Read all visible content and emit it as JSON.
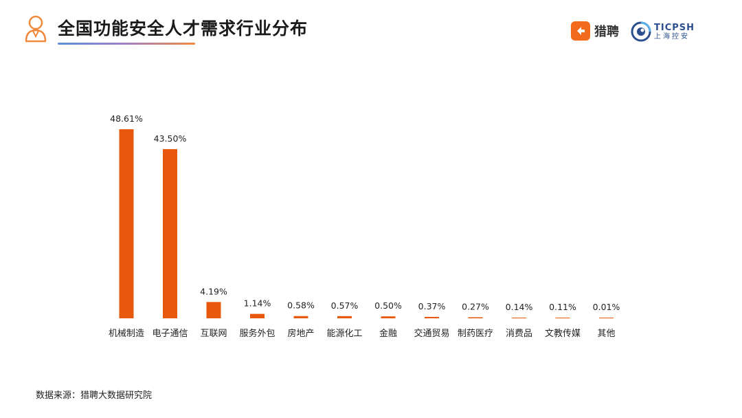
{
  "header": {
    "title": "全国功能安全人才需求行业分布",
    "icon": "person-icon"
  },
  "logos": {
    "liepin": {
      "text": "猎聘",
      "color": "#f26a1b"
    },
    "ticpsh": {
      "en": "TICPSH",
      "cn": "上海控安",
      "color": "#2b4f8f"
    }
  },
  "colors": {
    "bar": "#e8580c",
    "accent": "#f08a3c"
  },
  "chart_data": {
    "type": "bar",
    "categories": [
      "机械制造",
      "电子通信",
      "互联网",
      "服务外包",
      "房地产",
      "能源化工",
      "金融",
      "交通贸易",
      "制药医疗",
      "消费品",
      "文教传媒",
      "其他"
    ],
    "values": [
      48.61,
      43.5,
      4.19,
      1.14,
      0.58,
      0.57,
      0.5,
      0.37,
      0.27,
      0.14,
      0.11,
      0.01
    ],
    "value_labels": [
      "48.61%",
      "43.50%",
      "4.19%",
      "1.14%",
      "0.58%",
      "0.57%",
      "0.50%",
      "0.37%",
      "0.27%",
      "0.14%",
      "0.11%",
      "0.01%"
    ],
    "unit": "%",
    "grid": false,
    "legend": "none"
  },
  "footer": {
    "source": "数据来源：猎聘大数据研究院"
  }
}
